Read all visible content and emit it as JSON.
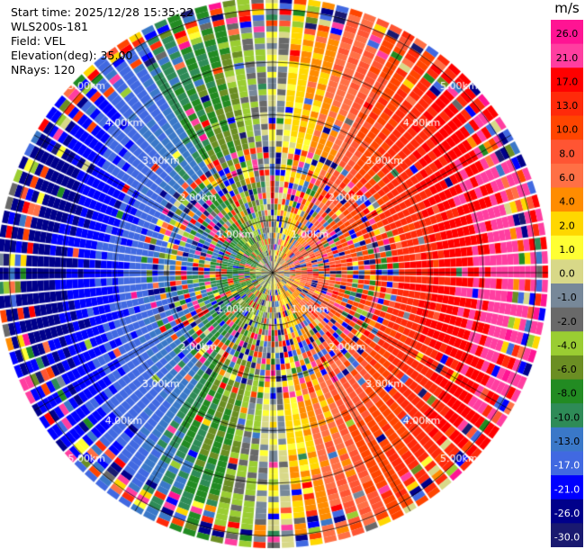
{
  "header": {
    "start_time": "Start time: 2025/12/28 15:35:22",
    "device": "WLS200s-181",
    "field": "Field: VEL",
    "elevation": "Elevation(deg): 35.00",
    "nrays": "NRays: 120"
  },
  "chart_data": {
    "type": "heatmap",
    "projection": "polar-ppi",
    "n_rays": 120,
    "range_rings_km": [
      1,
      2,
      3,
      4,
      5
    ],
    "range_ring_labels": [
      "1.00km",
      "2.00km",
      "3.00km",
      "4.00km",
      "5.00km"
    ],
    "max_range_km": 5.2,
    "spokes_deg": [
      0,
      30,
      60,
      90,
      120,
      150,
      180,
      210,
      240,
      270,
      300,
      330
    ],
    "colorbar": {
      "unit": "m/s",
      "tick_labels": [
        "26.0",
        "21.0",
        "17.0",
        "13.0",
        "10.0",
        "8.0",
        "6.0",
        "4.0",
        "2.0",
        "1.0",
        "0.0",
        "-1.0",
        "-2.0",
        "-4.0",
        "-6.0",
        "-8.0",
        "-10.0",
        "-13.0",
        "-17.0",
        "-21.0",
        "-26.0",
        "-30.0"
      ],
      "colors": [
        "#ff1493",
        "#ff3ea0",
        "#ff0000",
        "#ff2a0a",
        "#ff4500",
        "#ff5533",
        "#ff7045",
        "#ff8c00",
        "#ffd700",
        "#ffff33",
        "#d8d888",
        "#778899",
        "#696969",
        "#9acd32",
        "#6b8e23",
        "#228b22",
        "#2e8b57",
        "#3a78c8",
        "#4169e1",
        "#0000ff",
        "#00008b",
        "#191970"
      ]
    },
    "velocity_model": {
      "description_text": "",
      "peak_azimuth_deg": 90,
      "near_max_mps": 5,
      "far_max_mps": 24
    }
  }
}
